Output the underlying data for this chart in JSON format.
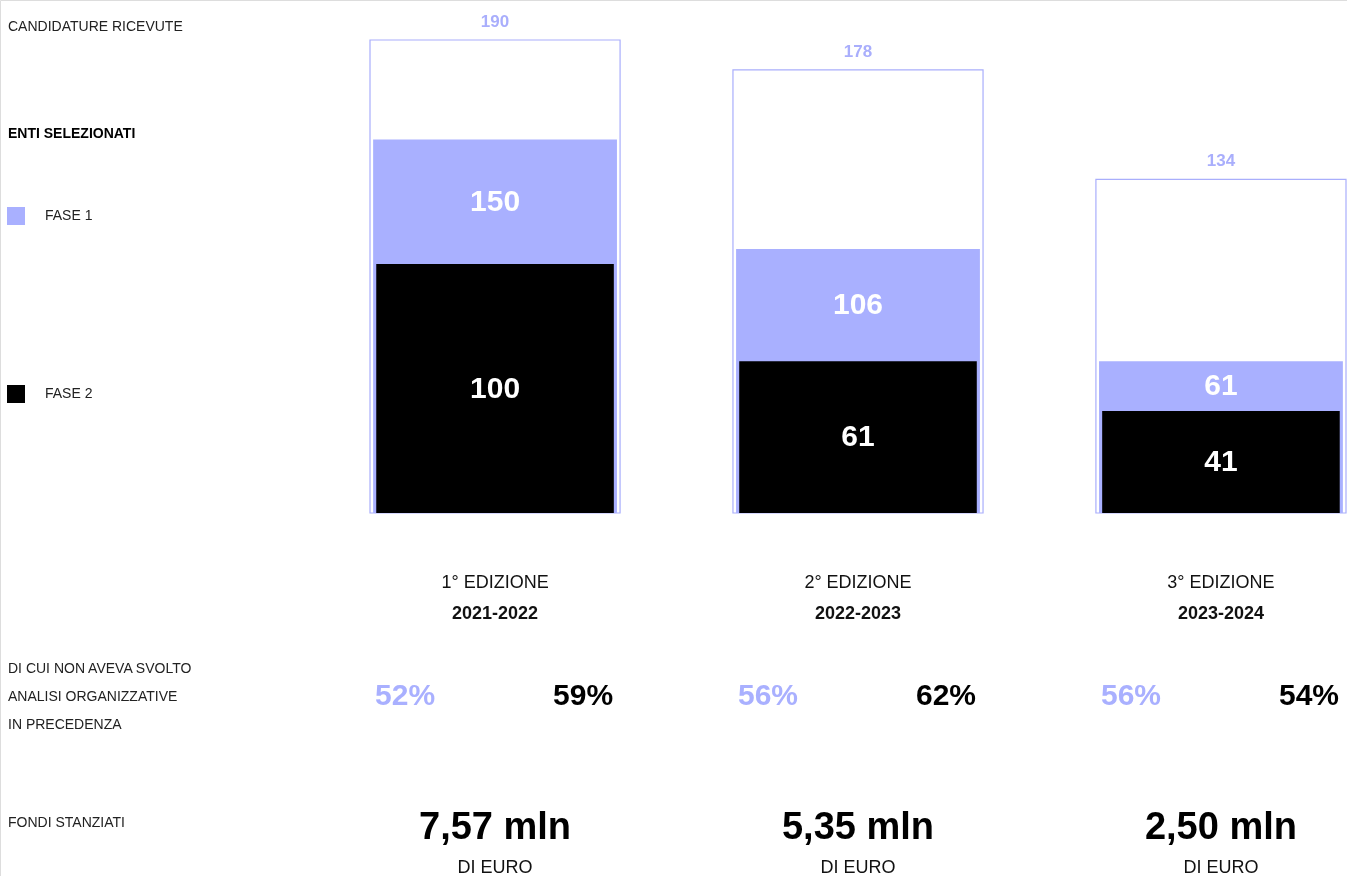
{
  "chart_data": {
    "type": "bar",
    "categories": [
      "1° EDIZIONE",
      "2° EDIZIONE",
      "3° EDIZIONE"
    ],
    "legend_title": "ENTI SELEZIONATI",
    "legend": "left",
    "data_labels": true,
    "series": [
      {
        "name": "FASE 2",
        "color": "#000000",
        "values": [
          100,
          61,
          41
        ]
      },
      {
        "name": "FASE 1",
        "color": "#a9b0ff",
        "values": [
          150,
          106,
          61
        ]
      },
      {
        "color": "#a9aefc",
        "values": [
          190,
          178,
          134
        ]
      }
    ],
    "annotations": [
      "CANDIDATURE RICEVUTE",
      "DI CUI NON AVEVA SVOLTO\nANALISI ORGANIZZATIVE\nIN PRECEDENZA",
      "FONDI STANZIATI",
      "2021-2022",
      "52%",
      "59%",
      "7,57 mln",
      "DI EURO",
      "2022-2023",
      "56%",
      "62%",
      "5,35 mln",
      "DI EURO",
      "2023-2024",
      "56%",
      "54%",
      "2,50 mln",
      "DI EURO"
    ]
  }
}
